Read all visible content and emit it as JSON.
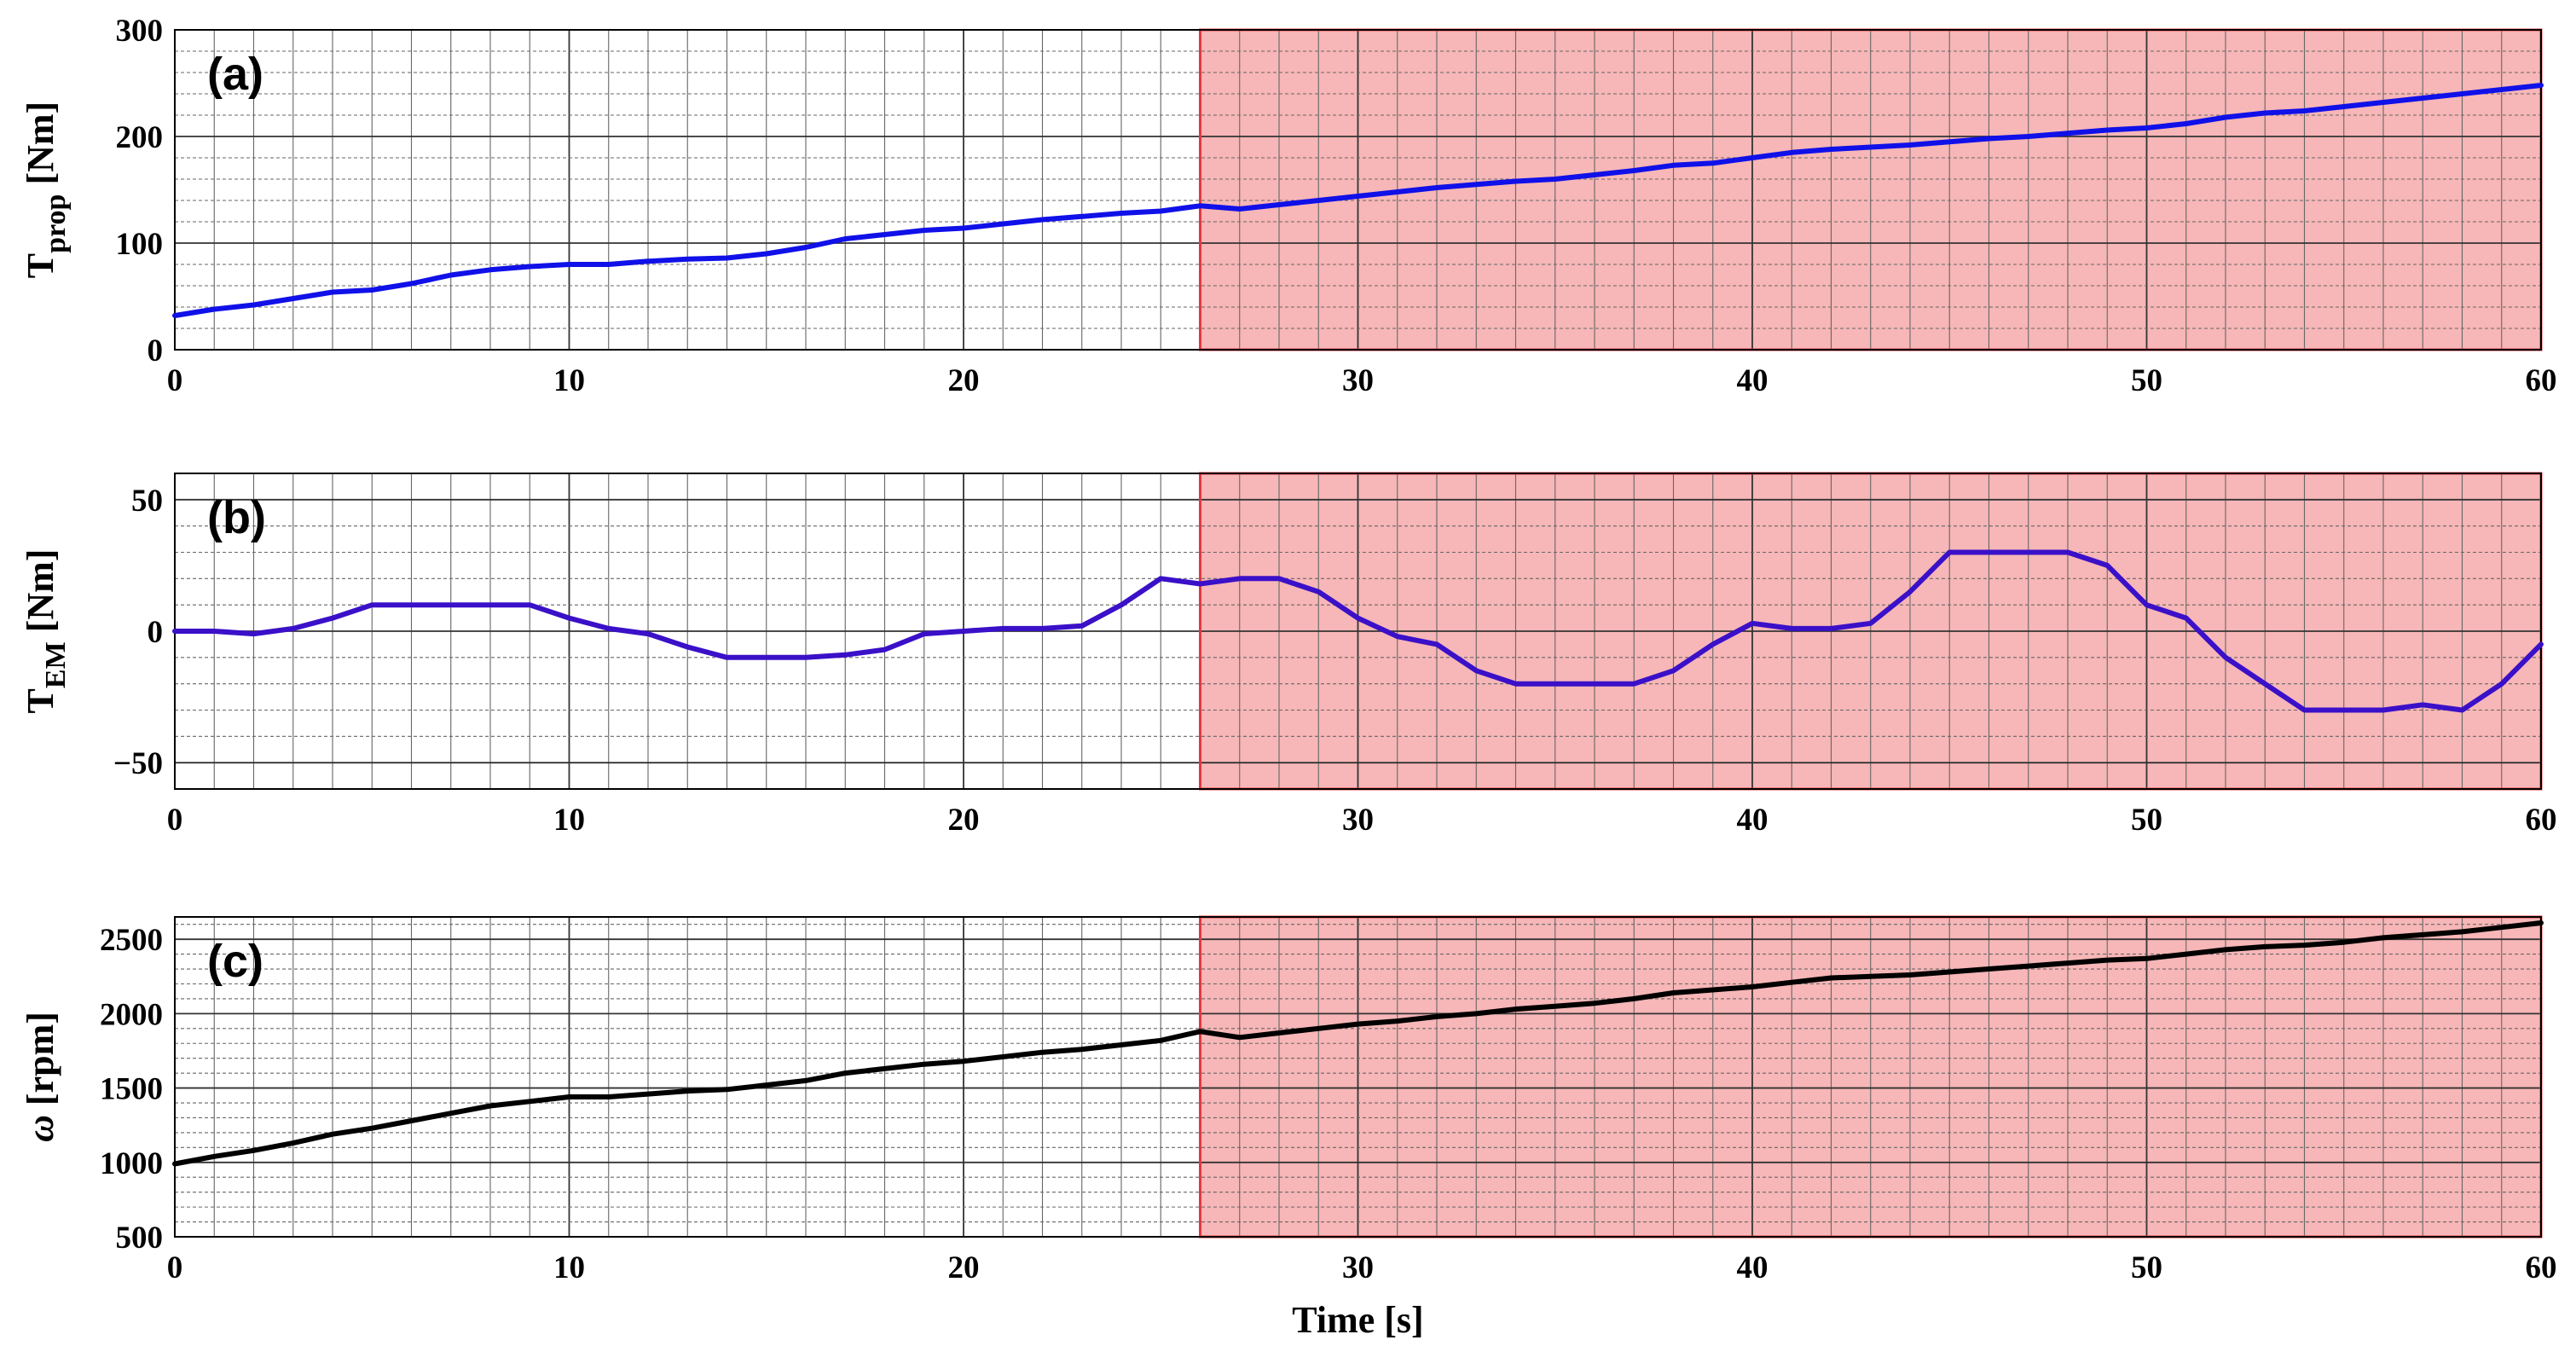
{
  "chart_data": [
    {
      "type": "line",
      "panel_label": "(a)",
      "ylabel_main": "T",
      "ylabel_sub": "prop",
      "ylabel_unit": " [Nm]",
      "xlim": [
        0,
        60
      ],
      "ylim": [
        0,
        300
      ],
      "xticks": [
        0,
        10,
        20,
        30,
        40,
        50,
        60
      ],
      "yticks": [
        0,
        100,
        200,
        300
      ],
      "grid": true,
      "minor_x_step": 1,
      "minor_y_step": 20,
      "highlight_region": {
        "x_start": 26,
        "x_end": 60,
        "color": "#f7b6b7",
        "edge_color": "#e8383d"
      },
      "line_color": "#1010e8",
      "series": [
        {
          "name": "T_prop",
          "x": [
            0,
            1,
            2,
            3,
            4,
            5,
            6,
            7,
            8,
            9,
            10,
            11,
            12,
            13,
            14,
            15,
            16,
            17,
            18,
            19,
            20,
            21,
            22,
            23,
            24,
            25,
            26,
            27,
            28,
            29,
            30,
            31,
            32,
            33,
            34,
            35,
            36,
            37,
            38,
            39,
            40,
            41,
            42,
            43,
            44,
            45,
            46,
            47,
            48,
            49,
            50,
            51,
            52,
            53,
            54,
            55,
            56,
            57,
            58,
            59,
            60
          ],
          "y": [
            32,
            38,
            42,
            48,
            54,
            56,
            62,
            70,
            75,
            78,
            80,
            80,
            83,
            85,
            86,
            90,
            96,
            104,
            108,
            112,
            114,
            118,
            122,
            125,
            128,
            130,
            135,
            132,
            136,
            140,
            144,
            148,
            152,
            155,
            158,
            160,
            164,
            168,
            173,
            175,
            180,
            185,
            188,
            190,
            192,
            195,
            198,
            200,
            203,
            206,
            208,
            212,
            218,
            222,
            224,
            228,
            232,
            236,
            240,
            244,
            248
          ]
        }
      ]
    },
    {
      "type": "line",
      "panel_label": "(b)",
      "ylabel_main": "T",
      "ylabel_sub": "EM",
      "ylabel_unit": " [Nm]",
      "xlim": [
        0,
        60
      ],
      "ylim": [
        -60,
        60
      ],
      "xticks": [
        0,
        10,
        20,
        30,
        40,
        50,
        60
      ],
      "yticks": [
        -50,
        0,
        50
      ],
      "ytick_labels": [
        "−50",
        "0",
        "50"
      ],
      "grid": true,
      "minor_x_step": 1,
      "minor_y_step": 10,
      "highlight_region": {
        "x_start": 26,
        "x_end": 60,
        "color": "#f7b6b7",
        "edge_color": "#e8383d"
      },
      "line_color": "#3a10c8",
      "series": [
        {
          "name": "T_EM",
          "x": [
            0,
            1,
            2,
            3,
            4,
            5,
            6,
            7,
            8,
            9,
            10,
            11,
            12,
            13,
            14,
            15,
            16,
            17,
            18,
            19,
            20,
            21,
            22,
            23,
            24,
            25,
            26,
            27,
            28,
            29,
            30,
            31,
            32,
            33,
            34,
            35,
            36,
            37,
            38,
            39,
            40,
            41,
            42,
            43,
            44,
            45,
            46,
            47,
            48,
            49,
            50,
            51,
            52,
            53,
            54,
            55,
            56,
            57,
            58,
            59,
            60
          ],
          "y": [
            0,
            0,
            -1,
            1,
            5,
            10,
            10,
            10,
            10,
            10,
            5,
            1,
            -1,
            -6,
            -10,
            -10,
            -10,
            -9,
            -7,
            -1,
            0,
            1,
            1,
            2,
            10,
            20,
            18,
            20,
            20,
            15,
            5,
            -2,
            -5,
            -15,
            -20,
            -20,
            -20,
            -20,
            -15,
            -5,
            3,
            1,
            1,
            3,
            15,
            30,
            30,
            30,
            30,
            25,
            10,
            5,
            -10,
            -20,
            -30,
            -30,
            -30,
            -28,
            -30,
            -20,
            -5
          ]
        }
      ]
    },
    {
      "type": "line",
      "panel_label": "(c)",
      "ylabel_main": "ω",
      "ylabel_sub": "",
      "ylabel_unit": " [rpm]",
      "xlabel": "Time [s]",
      "xlim": [
        0,
        60
      ],
      "ylim": [
        500,
        2650
      ],
      "xticks": [
        0,
        10,
        20,
        30,
        40,
        50,
        60
      ],
      "yticks": [
        500,
        1000,
        1500,
        2000,
        2500
      ],
      "grid": true,
      "minor_x_step": 1,
      "minor_y_step": 100,
      "highlight_region": {
        "x_start": 26,
        "x_end": 60,
        "color": "#f7b6b7",
        "edge_color": "#e8383d"
      },
      "line_color": "#000000",
      "series": [
        {
          "name": "omega",
          "x": [
            0,
            1,
            2,
            3,
            4,
            5,
            6,
            7,
            8,
            9,
            10,
            11,
            12,
            13,
            14,
            15,
            16,
            17,
            18,
            19,
            20,
            21,
            22,
            23,
            24,
            25,
            26,
            27,
            28,
            29,
            30,
            31,
            32,
            33,
            34,
            35,
            36,
            37,
            38,
            39,
            40,
            41,
            42,
            43,
            44,
            45,
            46,
            47,
            48,
            49,
            50,
            51,
            52,
            53,
            54,
            55,
            56,
            57,
            58,
            59,
            60
          ],
          "y": [
            990,
            1040,
            1080,
            1130,
            1190,
            1230,
            1280,
            1330,
            1380,
            1410,
            1440,
            1440,
            1460,
            1480,
            1490,
            1520,
            1550,
            1600,
            1630,
            1660,
            1680,
            1710,
            1740,
            1760,
            1790,
            1820,
            1880,
            1840,
            1870,
            1900,
            1930,
            1950,
            1980,
            2000,
            2030,
            2050,
            2070,
            2100,
            2140,
            2160,
            2180,
            2210,
            2240,
            2250,
            2260,
            2280,
            2300,
            2320,
            2340,
            2360,
            2370,
            2400,
            2430,
            2450,
            2460,
            2480,
            2510,
            2530,
            2550,
            2580,
            2610
          ]
        }
      ]
    }
  ]
}
